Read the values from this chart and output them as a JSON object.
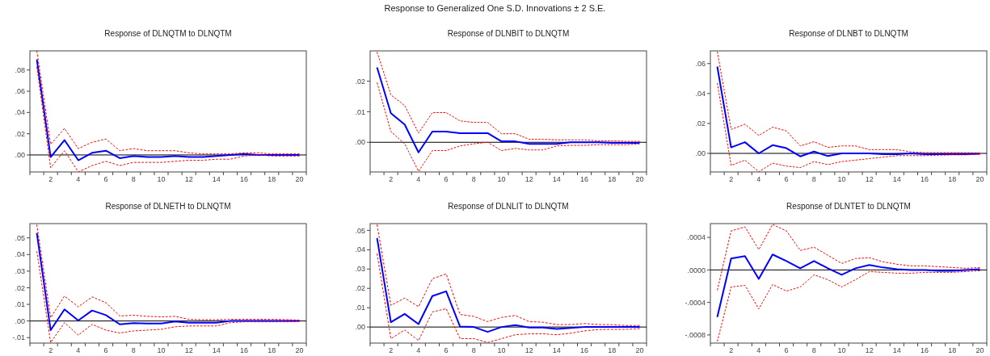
{
  "chart_data": [
    {
      "type": "other",
      "title": "Response to Generalized One S.D. Innovations ± 2 S.E."
    },
    {
      "type": "line",
      "title": "Response of DLNQTM to DLNQTM",
      "x": [
        1,
        2,
        3,
        4,
        5,
        6,
        7,
        8,
        9,
        10,
        11,
        12,
        13,
        14,
        15,
        16,
        17,
        18,
        19,
        20
      ],
      "xlim": [
        0.5,
        20.5
      ],
      "xticks": [
        {
          "value": 0.5,
          "label": null
        },
        {
          "value": 1.5,
          "label": null
        },
        {
          "value": 2,
          "label": "2"
        },
        {
          "value": 2.5,
          "label": null
        },
        {
          "value": 3.5,
          "label": null
        },
        {
          "value": 4,
          "label": "4"
        },
        {
          "value": 4.5,
          "label": null
        },
        {
          "value": 5.5,
          "label": null
        },
        {
          "value": 6,
          "label": "6"
        },
        {
          "value": 6.5,
          "label": null
        },
        {
          "value": 7.5,
          "label": null
        },
        {
          "value": 8,
          "label": "8"
        },
        {
          "value": 8.5,
          "label": null
        },
        {
          "value": 9.5,
          "label": null
        },
        {
          "value": 10,
          "label": "10"
        },
        {
          "value": 10.5,
          "label": null
        },
        {
          "value": 11.5,
          "label": null
        },
        {
          "value": 12,
          "label": "12"
        },
        {
          "value": 12.5,
          "label": null
        },
        {
          "value": 13.5,
          "label": null
        },
        {
          "value": 14,
          "label": "14"
        },
        {
          "value": 14.5,
          "label": null
        },
        {
          "value": 15.5,
          "label": null
        },
        {
          "value": 16,
          "label": "16"
        },
        {
          "value": 16.5,
          "label": null
        },
        {
          "value": 17.5,
          "label": null
        },
        {
          "value": 18,
          "label": "18"
        },
        {
          "value": 18.5,
          "label": null
        },
        {
          "value": 19.5,
          "label": null
        },
        {
          "value": 20,
          "label": "20"
        },
        {
          "value": 20.5,
          "label": null
        }
      ],
      "ylim": [
        -0.016,
        0.098
      ],
      "yticks": [
        {
          "value": 0,
          "label": ".00"
        },
        {
          "value": 0.02,
          "label": ".02"
        },
        {
          "value": 0.04,
          "label": ".04"
        },
        {
          "value": 0.06,
          "label": ".06"
        },
        {
          "value": 0.08,
          "label": ".08"
        }
      ],
      "ref_lines": [
        {
          "axis": "y",
          "value": 0,
          "color": "#000000"
        }
      ],
      "series": [
        {
          "color": "#0000ff",
          "line_style": "solid",
          "values": [
            0.09,
            -0.002,
            0.014,
            -0.005,
            0.002,
            0.004,
            -0.003,
            -0.001,
            -0.002,
            -0.002,
            -0.001,
            -0.002,
            -0.002,
            -0.001,
            0.0,
            0.001,
            0.0,
            0.0,
            0.0,
            0.0
          ]
        },
        {
          "color": "#ff0000",
          "line_style": "dashed",
          "values": [
            0.098,
            0.01,
            0.025,
            0.006,
            0.012,
            0.015,
            0.004,
            0.006,
            0.004,
            0.004,
            0.004,
            0.002,
            0.001,
            0.001,
            0.001,
            0.002,
            0.002,
            0.001,
            0.001,
            0.001
          ]
        },
        {
          "color": "#ff0000",
          "line_style": "dashed",
          "values": [
            0.083,
            -0.012,
            0.004,
            -0.016,
            -0.01,
            -0.006,
            -0.01,
            -0.007,
            -0.007,
            -0.007,
            -0.006,
            -0.005,
            -0.005,
            -0.004,
            -0.004,
            -0.001,
            0.0,
            -0.001,
            -0.001,
            -0.001
          ]
        }
      ]
    },
    {
      "type": "line",
      "title": "Response of DLNBIT to DLNQTM",
      "x": [
        1,
        2,
        3,
        4,
        5,
        6,
        7,
        8,
        9,
        10,
        11,
        12,
        13,
        14,
        15,
        16,
        17,
        18,
        19,
        20
      ],
      "xlim": [
        0.5,
        20.5
      ],
      "xticks": [
        {
          "value": 0.5,
          "label": null
        },
        {
          "value": 1.5,
          "label": null
        },
        {
          "value": 2,
          "label": "2"
        },
        {
          "value": 2.5,
          "label": null
        },
        {
          "value": 3.5,
          "label": null
        },
        {
          "value": 4,
          "label": "4"
        },
        {
          "value": 4.5,
          "label": null
        },
        {
          "value": 5.5,
          "label": null
        },
        {
          "value": 6,
          "label": "6"
        },
        {
          "value": 6.5,
          "label": null
        },
        {
          "value": 7.5,
          "label": null
        },
        {
          "value": 8,
          "label": "8"
        },
        {
          "value": 8.5,
          "label": null
        },
        {
          "value": 9.5,
          "label": null
        },
        {
          "value": 10,
          "label": "10"
        },
        {
          "value": 10.5,
          "label": null
        },
        {
          "value": 11.5,
          "label": null
        },
        {
          "value": 12,
          "label": "12"
        },
        {
          "value": 12.5,
          "label": null
        },
        {
          "value": 13.5,
          "label": null
        },
        {
          "value": 14,
          "label": "14"
        },
        {
          "value": 14.5,
          "label": null
        },
        {
          "value": 15.5,
          "label": null
        },
        {
          "value": 16,
          "label": "16"
        },
        {
          "value": 16.5,
          "label": null
        },
        {
          "value": 17.5,
          "label": null
        },
        {
          "value": 18,
          "label": "18"
        },
        {
          "value": 18.5,
          "label": null
        },
        {
          "value": 19.5,
          "label": null
        },
        {
          "value": 20,
          "label": "20"
        },
        {
          "value": 20.5,
          "label": null
        }
      ],
      "ylim": [
        -0.0097,
        0.0299
      ],
      "yticks": [
        {
          "value": 0,
          "label": ".00"
        },
        {
          "value": 0.01,
          "label": ".01"
        },
        {
          "value": 0.02,
          "label": ".02"
        }
      ],
      "ref_lines": [
        {
          "axis": "y",
          "value": 0,
          "color": "#000000"
        }
      ],
      "series": [
        {
          "color": "#0000ff",
          "line_style": "solid",
          "values": [
            0.0245,
            0.0095,
            0.0058,
            -0.0033,
            0.0035,
            0.0035,
            0.003,
            0.003,
            0.003,
            0.0003,
            0.0003,
            -0.0005,
            -0.0005,
            -0.0005,
            0.0,
            0.0,
            0.0,
            -0.0002,
            -0.0002,
            -0.0002
          ]
        },
        {
          "color": "#ff0000",
          "line_style": "dashed",
          "values": [
            0.0295,
            0.0155,
            0.012,
            0.003,
            0.0097,
            0.0097,
            0.007,
            0.0065,
            0.0065,
            0.0028,
            0.0028,
            0.001,
            0.001,
            0.0008,
            0.0008,
            0.0008,
            0.0005,
            0.0005,
            0.0003,
            0.0003
          ]
        },
        {
          "color": "#ff0000",
          "line_style": "dashed",
          "values": [
            0.0195,
            0.0035,
            -0.0005,
            -0.0095,
            -0.0027,
            -0.0027,
            -0.0012,
            -0.0005,
            0.0,
            -0.0027,
            -0.002,
            -0.0025,
            -0.0025,
            -0.0012,
            -0.001,
            -0.001,
            -0.0008,
            -0.0008,
            -0.0008,
            -0.0005
          ]
        }
      ]
    },
    {
      "type": "line",
      "title": "Response of DLNBT to DLNQTM",
      "x": [
        1,
        2,
        3,
        4,
        5,
        6,
        7,
        8,
        9,
        10,
        11,
        12,
        13,
        14,
        15,
        16,
        17,
        18,
        19,
        20
      ],
      "xlim": [
        0.5,
        20.5
      ],
      "xticks": [
        {
          "value": 0.5,
          "label": null
        },
        {
          "value": 1.5,
          "label": null
        },
        {
          "value": 2,
          "label": "2"
        },
        {
          "value": 2.5,
          "label": null
        },
        {
          "value": 3.5,
          "label": null
        },
        {
          "value": 4,
          "label": "4"
        },
        {
          "value": 4.5,
          "label": null
        },
        {
          "value": 5.5,
          "label": null
        },
        {
          "value": 6,
          "label": "6"
        },
        {
          "value": 6.5,
          "label": null
        },
        {
          "value": 7.5,
          "label": null
        },
        {
          "value": 8,
          "label": "8"
        },
        {
          "value": 8.5,
          "label": null
        },
        {
          "value": 9.5,
          "label": null
        },
        {
          "value": 10,
          "label": "10"
        },
        {
          "value": 10.5,
          "label": null
        },
        {
          "value": 11.5,
          "label": null
        },
        {
          "value": 12,
          "label": "12"
        },
        {
          "value": 12.5,
          "label": null
        },
        {
          "value": 13.5,
          "label": null
        },
        {
          "value": 14,
          "label": "14"
        },
        {
          "value": 14.5,
          "label": null
        },
        {
          "value": 15.5,
          "label": null
        },
        {
          "value": 16,
          "label": "16"
        },
        {
          "value": 16.5,
          "label": null
        },
        {
          "value": 17.5,
          "label": null
        },
        {
          "value": 18,
          "label": "18"
        },
        {
          "value": 18.5,
          "label": null
        },
        {
          "value": 19.5,
          "label": null
        },
        {
          "value": 20,
          "label": "20"
        },
        {
          "value": 20.5,
          "label": null
        }
      ],
      "ylim": [
        -0.0124,
        0.0685
      ],
      "yticks": [
        {
          "value": 0,
          "label": ".00"
        },
        {
          "value": 0.02,
          "label": ".02"
        },
        {
          "value": 0.04,
          "label": ".04"
        },
        {
          "value": 0.06,
          "label": ".06"
        }
      ],
      "ref_lines": [
        {
          "axis": "y",
          "value": 0,
          "color": "#000000"
        }
      ],
      "series": [
        {
          "color": "#0000ff",
          "line_style": "solid",
          "values": [
            0.058,
            0.004,
            0.0075,
            0.0,
            0.0055,
            0.0035,
            -0.002,
            0.0012,
            -0.0018,
            0.0,
            0.0,
            0.0,
            -0.0005,
            -0.0005,
            0.0,
            -0.0005,
            -0.0005,
            -0.0005,
            -0.0005,
            -0.0003
          ]
        },
        {
          "color": "#ff0000",
          "line_style": "dashed",
          "values": [
            0.068,
            0.016,
            0.0195,
            0.012,
            0.0175,
            0.015,
            0.005,
            0.0078,
            0.004,
            0.005,
            0.005,
            0.0025,
            0.0025,
            0.0025,
            0.001,
            0.0005,
            0.0005,
            0.0005,
            0.0005,
            0.0003
          ]
        },
        {
          "color": "#ff0000",
          "line_style": "dashed",
          "values": [
            0.047,
            -0.008,
            -0.0045,
            -0.0123,
            -0.0065,
            -0.0085,
            -0.0095,
            -0.0055,
            -0.0075,
            -0.0055,
            -0.0045,
            -0.0035,
            -0.0025,
            -0.0015,
            -0.0015,
            -0.0015,
            -0.0012,
            -0.001,
            -0.001,
            -0.0005
          ]
        }
      ]
    },
    {
      "type": "line",
      "title": "Response of DLNETH to DLNQTM",
      "x": [
        1,
        2,
        3,
        4,
        5,
        6,
        7,
        8,
        9,
        10,
        11,
        12,
        13,
        14,
        15,
        16,
        17,
        18,
        19,
        20
      ],
      "xlim": [
        0.5,
        20.5
      ],
      "xticks": [
        {
          "value": 0.5,
          "label": null
        },
        {
          "value": 1.5,
          "label": null
        },
        {
          "value": 2,
          "label": "2"
        },
        {
          "value": 2.5,
          "label": null
        },
        {
          "value": 3.5,
          "label": null
        },
        {
          "value": 4,
          "label": "4"
        },
        {
          "value": 4.5,
          "label": null
        },
        {
          "value": 5.5,
          "label": null
        },
        {
          "value": 6,
          "label": "6"
        },
        {
          "value": 6.5,
          "label": null
        },
        {
          "value": 7.5,
          "label": null
        },
        {
          "value": 8,
          "label": "8"
        },
        {
          "value": 8.5,
          "label": null
        },
        {
          "value": 9.5,
          "label": null
        },
        {
          "value": 10,
          "label": "10"
        },
        {
          "value": 10.5,
          "label": null
        },
        {
          "value": 11.5,
          "label": null
        },
        {
          "value": 12,
          "label": "12"
        },
        {
          "value": 12.5,
          "label": null
        },
        {
          "value": 13.5,
          "label": null
        },
        {
          "value": 14,
          "label": "14"
        },
        {
          "value": 14.5,
          "label": null
        },
        {
          "value": 15.5,
          "label": null
        },
        {
          "value": 16,
          "label": "16"
        },
        {
          "value": 16.5,
          "label": null
        },
        {
          "value": 17.5,
          "label": null
        },
        {
          "value": 18,
          "label": "18"
        },
        {
          "value": 18.5,
          "label": null
        },
        {
          "value": 19.5,
          "label": null
        },
        {
          "value": 20,
          "label": "20"
        },
        {
          "value": 20.5,
          "label": null
        }
      ],
      "ylim": [
        -0.0133,
        0.0586
      ],
      "yticks": [
        {
          "value": -0.01,
          "label": "-.01"
        },
        {
          "value": 0,
          "label": ".00"
        },
        {
          "value": 0.01,
          "label": ".01"
        },
        {
          "value": 0.02,
          "label": ".02"
        },
        {
          "value": 0.03,
          "label": ".03"
        },
        {
          "value": 0.04,
          "label": ".04"
        },
        {
          "value": 0.05,
          "label": ".05"
        }
      ],
      "ref_lines": [
        {
          "axis": "y",
          "value": 0,
          "color": "#000000"
        }
      ],
      "series": [
        {
          "color": "#0000ff",
          "line_style": "solid",
          "values": [
            0.053,
            -0.0055,
            0.007,
            0.0003,
            0.0063,
            0.0035,
            -0.002,
            -0.0013,
            -0.0015,
            -0.0015,
            -0.0003,
            -0.001,
            -0.001,
            -0.001,
            0.0,
            0.0,
            0.0,
            0.0,
            0.0,
            0.0
          ]
        },
        {
          "color": "#ff0000",
          "line_style": "dashed",
          "values": [
            0.058,
            0.002,
            0.015,
            0.0085,
            0.0145,
            0.011,
            0.003,
            0.0035,
            0.0028,
            0.0025,
            0.0028,
            0.001,
            0.0008,
            0.0008,
            0.001,
            0.001,
            0.001,
            0.001,
            0.0008,
            0.0005
          ]
        },
        {
          "color": "#ff0000",
          "line_style": "dashed",
          "values": [
            0.042,
            -0.013,
            -0.001,
            -0.0085,
            -0.002,
            -0.0055,
            -0.0072,
            -0.006,
            -0.0055,
            -0.005,
            -0.0035,
            -0.003,
            -0.003,
            -0.003,
            -0.001,
            -0.0005,
            -0.0005,
            -0.0005,
            -0.0005,
            -0.0003
          ]
        }
      ]
    },
    {
      "type": "line",
      "title": "Response of DLNLIT to DLNQTM",
      "x": [
        1,
        2,
        3,
        4,
        5,
        6,
        7,
        8,
        9,
        10,
        11,
        12,
        13,
        14,
        15,
        16,
        17,
        18,
        19,
        20
      ],
      "xlim": [
        0.5,
        20.5
      ],
      "xticks": [
        {
          "value": 0.5,
          "label": null
        },
        {
          "value": 1.5,
          "label": null
        },
        {
          "value": 2,
          "label": "2"
        },
        {
          "value": 2.5,
          "label": null
        },
        {
          "value": 3.5,
          "label": null
        },
        {
          "value": 4,
          "label": "4"
        },
        {
          "value": 4.5,
          "label": null
        },
        {
          "value": 5.5,
          "label": null
        },
        {
          "value": 6,
          "label": "6"
        },
        {
          "value": 6.5,
          "label": null
        },
        {
          "value": 7.5,
          "label": null
        },
        {
          "value": 8,
          "label": "8"
        },
        {
          "value": 8.5,
          "label": null
        },
        {
          "value": 9.5,
          "label": null
        },
        {
          "value": 10,
          "label": "10"
        },
        {
          "value": 10.5,
          "label": null
        },
        {
          "value": 11.5,
          "label": null
        },
        {
          "value": 12,
          "label": "12"
        },
        {
          "value": 12.5,
          "label": null
        },
        {
          "value": 13.5,
          "label": null
        },
        {
          "value": 14,
          "label": "14"
        },
        {
          "value": 14.5,
          "label": null
        },
        {
          "value": 15.5,
          "label": null
        },
        {
          "value": 16,
          "label": "16"
        },
        {
          "value": 16.5,
          "label": null
        },
        {
          "value": 17.5,
          "label": null
        },
        {
          "value": 18,
          "label": "18"
        },
        {
          "value": 18.5,
          "label": null
        },
        {
          "value": 19.5,
          "label": null
        },
        {
          "value": 20,
          "label": "20"
        },
        {
          "value": 20.5,
          "label": null
        }
      ],
      "ylim": [
        -0.0083,
        0.0535
      ],
      "yticks": [
        {
          "value": 0,
          "label": ".00"
        },
        {
          "value": 0.01,
          "label": ".01"
        },
        {
          "value": 0.02,
          "label": ".02"
        },
        {
          "value": 0.03,
          "label": ".03"
        },
        {
          "value": 0.04,
          "label": ".04"
        },
        {
          "value": 0.05,
          "label": ".05"
        }
      ],
      "ref_lines": [
        {
          "axis": "y",
          "value": 0,
          "color": "#000000"
        }
      ],
      "series": [
        {
          "color": "#0000ff",
          "line_style": "solid",
          "values": [
            0.046,
            0.0025,
            0.0068,
            0.0015,
            0.016,
            0.0185,
            0.0003,
            0.0,
            -0.0025,
            0.0,
            0.001,
            -0.0003,
            -0.0003,
            -0.001,
            -0.0005,
            0.0,
            0.0,
            0.0,
            0.0,
            0.0
          ]
        },
        {
          "color": "#ff0000",
          "line_style": "dashed",
          "values": [
            0.053,
            0.0112,
            0.015,
            0.0105,
            0.025,
            0.0275,
            0.0065,
            0.0055,
            0.0028,
            0.005,
            0.006,
            0.0028,
            0.0025,
            0.0013,
            0.0013,
            0.0018,
            0.0013,
            0.0012,
            0.0008,
            0.0008
          ]
        },
        {
          "color": "#ff0000",
          "line_style": "dashed",
          "values": [
            0.038,
            -0.006,
            -0.0015,
            -0.007,
            0.0078,
            0.0095,
            -0.006,
            -0.006,
            -0.008,
            -0.006,
            -0.004,
            -0.0035,
            -0.0035,
            -0.004,
            -0.0032,
            -0.002,
            -0.0013,
            -0.0012,
            -0.0012,
            -0.0008
          ]
        }
      ]
    },
    {
      "type": "line",
      "title": "Response of DLNTET to DLNQTM",
      "x": [
        1,
        2,
        3,
        4,
        5,
        6,
        7,
        8,
        9,
        10,
        11,
        12,
        13,
        14,
        15,
        16,
        17,
        18,
        19,
        20
      ],
      "xlim": [
        0.5,
        20.5
      ],
      "xticks": [
        {
          "value": 0.5,
          "label": null
        },
        {
          "value": 1.5,
          "label": null
        },
        {
          "value": 2,
          "label": "2"
        },
        {
          "value": 2.5,
          "label": null
        },
        {
          "value": 3.5,
          "label": null
        },
        {
          "value": 4,
          "label": "4"
        },
        {
          "value": 4.5,
          "label": null
        },
        {
          "value": 5.5,
          "label": null
        },
        {
          "value": 6,
          "label": "6"
        },
        {
          "value": 6.5,
          "label": null
        },
        {
          "value": 7.5,
          "label": null
        },
        {
          "value": 8,
          "label": "8"
        },
        {
          "value": 8.5,
          "label": null
        },
        {
          "value": 9.5,
          "label": null
        },
        {
          "value": 10,
          "label": "10"
        },
        {
          "value": 10.5,
          "label": null
        },
        {
          "value": 11.5,
          "label": null
        },
        {
          "value": 12,
          "label": "12"
        },
        {
          "value": 12.5,
          "label": null
        },
        {
          "value": 13.5,
          "label": null
        },
        {
          "value": 14,
          "label": "14"
        },
        {
          "value": 14.5,
          "label": null
        },
        {
          "value": 15.5,
          "label": null
        },
        {
          "value": 16,
          "label": "16"
        },
        {
          "value": 16.5,
          "label": null
        },
        {
          "value": 17.5,
          "label": null
        },
        {
          "value": 18,
          "label": "18"
        },
        {
          "value": 18.5,
          "label": null
        },
        {
          "value": 19.5,
          "label": null
        },
        {
          "value": 20,
          "label": "20"
        },
        {
          "value": 20.5,
          "label": null
        }
      ],
      "ylim": [
        -0.0009,
        0.00057
      ],
      "yticks": [
        {
          "value": -0.0008,
          "label": "-.0008"
        },
        {
          "value": -0.0004,
          "label": "-.0004"
        },
        {
          "value": 0,
          "label": ".0000"
        },
        {
          "value": 0.0004,
          "label": ".0004"
        }
      ],
      "ref_lines": [
        {
          "axis": "y",
          "value": 0,
          "color": "#000000"
        }
      ],
      "series": [
        {
          "color": "#0000ff",
          "line_style": "solid",
          "values": [
            -0.00058,
            0.00014,
            0.00017,
            -0.00011,
            0.00019,
            0.00011,
            2e-05,
            0.00011,
            2e-05,
            -6e-05,
            2e-05,
            6e-05,
            3e-05,
            1e-05,
            0.0,
            0.0,
            -1e-05,
            -1e-05,
            0.0,
            1e-05
          ]
        },
        {
          "color": "#ff0000",
          "line_style": "dashed",
          "values": [
            -0.00025,
            0.00048,
            0.00053,
            0.00025,
            0.00056,
            0.00048,
            0.00024,
            0.00028,
            0.00018,
            8e-05,
            0.00014,
            0.00015,
            0.0001,
            7e-05,
            5e-05,
            5e-05,
            4e-05,
            3e-05,
            2e-05,
            3e-05
          ]
        },
        {
          "color": "#ff0000",
          "line_style": "dashed",
          "values": [
            -0.00088,
            -0.00021,
            -0.00019,
            -0.00048,
            -0.00018,
            -0.00026,
            -0.00021,
            -6e-05,
            -0.00012,
            -0.00021,
            -0.00012,
            -2e-05,
            -3e-05,
            -4e-05,
            -4e-05,
            -3e-05,
            -3e-05,
            -3e-05,
            -2e-05,
            -1e-05
          ]
        }
      ]
    }
  ]
}
